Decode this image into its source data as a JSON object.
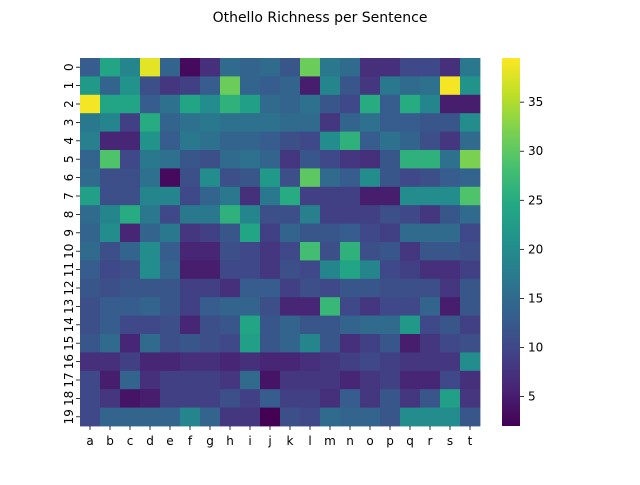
{
  "chart_data": {
    "type": "heatmap",
    "title": "Othello Richness per Sentence",
    "xlabel": "",
    "ylabel": "",
    "colormap": "viridis",
    "x_categories": [
      "a",
      "b",
      "c",
      "d",
      "e",
      "f",
      "g",
      "h",
      "i",
      "j",
      "k",
      "l",
      "m",
      "n",
      "o",
      "p",
      "q",
      "r",
      "s",
      "t"
    ],
    "y_categories": [
      "0",
      "1",
      "2",
      "3",
      "4",
      "5",
      "6",
      "7",
      "8",
      "9",
      "10",
      "11",
      "12",
      "13",
      "14",
      "15",
      "16",
      "17",
      "18",
      "19"
    ],
    "color_range": [
      2,
      39.5
    ],
    "colorbar_ticks": [
      5,
      10,
      15,
      20,
      25,
      30,
      35
    ],
    "values": [
      [
        13,
        24,
        19,
        38,
        14,
        3,
        7,
        15,
        14,
        15,
        12,
        31,
        17,
        15,
        7,
        7,
        10,
        10,
        7,
        17
      ],
      [
        22,
        14,
        21,
        11,
        8,
        9,
        13,
        31,
        14,
        13,
        14,
        5,
        19,
        12,
        8,
        17,
        15,
        16,
        39,
        21
      ],
      [
        39,
        24,
        24,
        13,
        16,
        24,
        20,
        26,
        23,
        15,
        14,
        16,
        12,
        10,
        25,
        13,
        25,
        19,
        5,
        5
      ],
      [
        17,
        19,
        9,
        25,
        14,
        16,
        17,
        16,
        16,
        16,
        15,
        15,
        8,
        14,
        16,
        13,
        13,
        12,
        12,
        20
      ],
      [
        18,
        6,
        6,
        21,
        13,
        17,
        16,
        14,
        14,
        13,
        11,
        10,
        20,
        26,
        13,
        16,
        14,
        11,
        8,
        15
      ],
      [
        14,
        29,
        10,
        17,
        16,
        12,
        11,
        15,
        16,
        14,
        8,
        12,
        10,
        8,
        7,
        12,
        26,
        26,
        16,
        32
      ],
      [
        15,
        11,
        11,
        16,
        3,
        11,
        20,
        11,
        12,
        22,
        11,
        30,
        15,
        13,
        20,
        12,
        10,
        11,
        13,
        14
      ],
      [
        23,
        11,
        11,
        19,
        19,
        10,
        14,
        17,
        7,
        17,
        25,
        9,
        9,
        9,
        5,
        5,
        20,
        20,
        20,
        29
      ],
      [
        15,
        19,
        25,
        17,
        10,
        17,
        17,
        26,
        19,
        11,
        11,
        18,
        9,
        9,
        9,
        11,
        10,
        8,
        12,
        15
      ],
      [
        14,
        20,
        6,
        14,
        17,
        8,
        9,
        12,
        24,
        9,
        14,
        12,
        12,
        13,
        10,
        9,
        15,
        15,
        15,
        10
      ],
      [
        15,
        11,
        14,
        20,
        13,
        6,
        6,
        11,
        10,
        8,
        10,
        28,
        11,
        26,
        11,
        12,
        8,
        12,
        12,
        11
      ],
      [
        13,
        10,
        11,
        20,
        14,
        5,
        5,
        10,
        10,
        8,
        11,
        10,
        19,
        24,
        19,
        10,
        9,
        7,
        7,
        9
      ],
      [
        12,
        11,
        12,
        12,
        12,
        9,
        9,
        7,
        13,
        13,
        9,
        11,
        10,
        12,
        12,
        11,
        11,
        11,
        8,
        12
      ],
      [
        11,
        13,
        13,
        14,
        12,
        9,
        13,
        14,
        14,
        11,
        6,
        6,
        27,
        10,
        8,
        10,
        10,
        14,
        5,
        12
      ],
      [
        11,
        13,
        10,
        10,
        11,
        6,
        11,
        12,
        24,
        12,
        14,
        12,
        12,
        14,
        15,
        15,
        22,
        10,
        12,
        9
      ],
      [
        12,
        15,
        6,
        15,
        11,
        12,
        11,
        10,
        23,
        12,
        14,
        19,
        12,
        7,
        9,
        12,
        5,
        8,
        10,
        11
      ],
      [
        7,
        7,
        9,
        6,
        6,
        7,
        7,
        6,
        7,
        6,
        6,
        7,
        8,
        9,
        10,
        9,
        8,
        8,
        8,
        20
      ],
      [
        10,
        5,
        14,
        7,
        9,
        9,
        9,
        8,
        15,
        4,
        8,
        8,
        8,
        6,
        8,
        9,
        6,
        6,
        10,
        7
      ],
      [
        10,
        8,
        4,
        5,
        9,
        9,
        9,
        11,
        9,
        13,
        9,
        9,
        7,
        13,
        8,
        12,
        8,
        12,
        23,
        8
      ],
      [
        10,
        14,
        14,
        14,
        14,
        19,
        14,
        8,
        8,
        2,
        11,
        10,
        15,
        14,
        14,
        12,
        20,
        20,
        20,
        12
      ]
    ]
  }
}
